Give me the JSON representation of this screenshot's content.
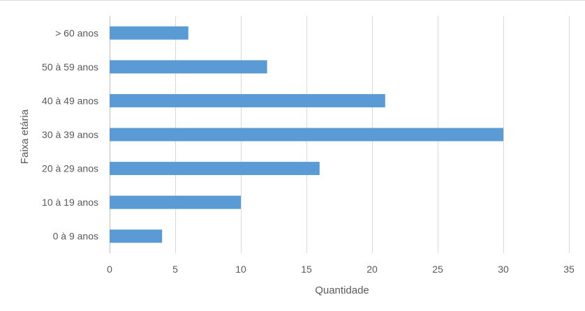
{
  "chart_data": {
    "type": "bar",
    "orientation": "horizontal",
    "categories": [
      "0 à 9 anos",
      "10 à 19 anos",
      "20 à 29 anos",
      "30 à 39 anos",
      "40 à 49 anos",
      "50 à 59 anos",
      "> 60 anos"
    ],
    "values": [
      4,
      10,
      16,
      30,
      21,
      12,
      6
    ],
    "xlabel": "Quantidade",
    "ylabel": "Faixa etária",
    "xlim": [
      0,
      35
    ],
    "xticks": [
      0,
      5,
      10,
      15,
      20,
      25,
      30,
      35
    ],
    "grid": "vertical",
    "bar_color": "#5b9bd5",
    "gridline_color": "#d9d9d9",
    "legend": "none"
  }
}
